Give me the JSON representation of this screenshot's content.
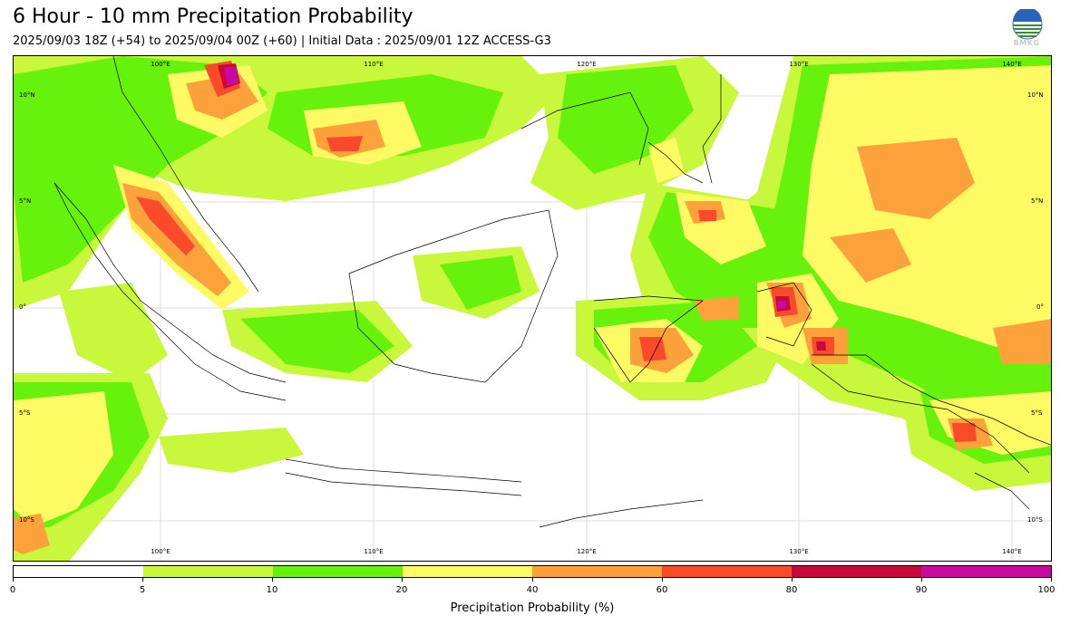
{
  "header": {
    "title": "6 Hour - 10 mm Precipitation Probability",
    "subtitle": "2025/09/03 18Z (+54) to 2025/09/04 00Z (+60) | Initial Data : 2025/09/01 12Z ACCESS-G3",
    "logo_text": "BMKG"
  },
  "map": {
    "type": "precipitation-probability-map",
    "region": "Indonesia / Maritime Continent",
    "lon_labels": [
      "100°E",
      "110°E",
      "120°E",
      "130°E",
      "140°E"
    ],
    "lat_labels": [
      "10°N",
      "5°N",
      "0°",
      "5°S",
      "10°S"
    ],
    "gridlines": true,
    "colors": {
      "0-5": "#ffffff",
      "5-10": "#c8f73c",
      "10-20": "#66f20c",
      "20-40": "#fdfa64",
      "40-60": "#fda13a",
      "60-80": "#fa4a2c",
      "80-90": "#c80a3a",
      "90-100": "#c80aa0"
    },
    "coastline_color": "#000000"
  },
  "colorbar": {
    "label": "Precipitation Probability (%)",
    "ticks": [
      "0",
      "5",
      "10",
      "20",
      "40",
      "60",
      "80",
      "90",
      "100"
    ],
    "colors": [
      "#ffffff",
      "#c8f73c",
      "#66f20c",
      "#fdfa64",
      "#fda13a",
      "#fa4a2c",
      "#c80a3a",
      "#c80aa0"
    ]
  }
}
